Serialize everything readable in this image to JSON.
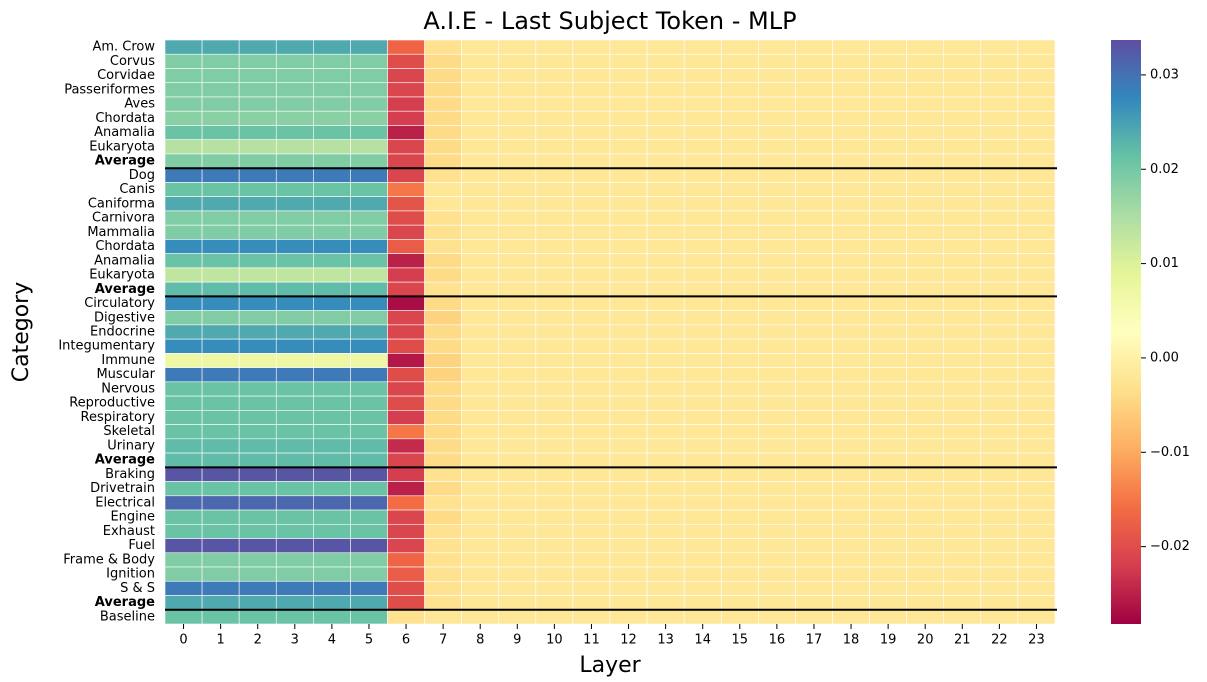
{
  "chart_data": {
    "type": "heatmap",
    "title": "A.I.E - Last Subject Token - MLP",
    "x_label": "Layer",
    "y_label": "Category",
    "x_categories": [
      0,
      1,
      2,
      3,
      4,
      5,
      6,
      7,
      8,
      9,
      10,
      11,
      12,
      13,
      14,
      15,
      16,
      17,
      18,
      19,
      20,
      21,
      22,
      23
    ],
    "y_categories": [
      "Am. Crow",
      "Corvus",
      "Corvidae",
      "Passeriformes",
      "Aves",
      "Chordata",
      "Anamalia",
      "Eukaryota",
      "Average",
      "Dog",
      "Canis",
      "Caniforma",
      "Carnivora",
      "Mammalia",
      "Chordata",
      "Anamalia",
      "Eukaryota",
      "Average",
      "Circulatory",
      "Digestive",
      "Endocrine",
      "Integumentary",
      "Immune",
      "Muscular",
      "Nervous",
      "Reproductive",
      "Respiratory",
      "Skeletal",
      "Urinary",
      "Average",
      "Braking",
      "Drivetrain",
      "Electrical",
      "Engine",
      "Exhaust",
      "Fuel",
      "Frame & Body",
      "Ignition",
      "S & S",
      "Average",
      "Baseline"
    ],
    "values": [
      [
        0.024,
        0.024,
        0.024,
        0.024,
        0.024,
        0.024,
        -0.017,
        -0.003,
        -0.002,
        -0.002,
        -0.002,
        -0.002,
        -0.002,
        -0.002,
        -0.002,
        -0.002,
        -0.002,
        -0.002,
        -0.002,
        -0.002,
        -0.002,
        -0.002,
        -0.002,
        -0.002
      ],
      [
        0.019,
        0.019,
        0.019,
        0.019,
        0.019,
        0.019,
        -0.02,
        -0.004,
        -0.002,
        -0.002,
        -0.002,
        -0.002,
        -0.002,
        -0.002,
        -0.002,
        -0.002,
        -0.002,
        -0.002,
        -0.002,
        -0.002,
        -0.002,
        -0.002,
        -0.002,
        -0.002
      ],
      [
        0.019,
        0.019,
        0.019,
        0.019,
        0.019,
        0.019,
        -0.021,
        -0.004,
        -0.002,
        -0.002,
        -0.002,
        -0.002,
        -0.002,
        -0.002,
        -0.002,
        -0.002,
        -0.002,
        -0.002,
        -0.002,
        -0.002,
        -0.002,
        -0.002,
        -0.002,
        -0.002
      ],
      [
        0.019,
        0.019,
        0.019,
        0.019,
        0.019,
        0.019,
        -0.021,
        -0.004,
        -0.002,
        -0.002,
        -0.002,
        -0.002,
        -0.002,
        -0.002,
        -0.002,
        -0.002,
        -0.002,
        -0.002,
        -0.002,
        -0.002,
        -0.002,
        -0.002,
        -0.002,
        -0.002
      ],
      [
        0.019,
        0.019,
        0.019,
        0.019,
        0.019,
        0.019,
        -0.022,
        -0.004,
        -0.002,
        -0.002,
        -0.002,
        -0.002,
        -0.002,
        -0.002,
        -0.002,
        -0.002,
        -0.002,
        -0.002,
        -0.002,
        -0.002,
        -0.002,
        -0.002,
        -0.002,
        -0.002
      ],
      [
        0.018,
        0.018,
        0.018,
        0.018,
        0.018,
        0.018,
        -0.022,
        -0.004,
        -0.002,
        -0.002,
        -0.002,
        -0.002,
        -0.002,
        -0.002,
        -0.002,
        -0.002,
        -0.002,
        -0.002,
        -0.002,
        -0.002,
        -0.002,
        -0.002,
        -0.002,
        -0.002
      ],
      [
        0.021,
        0.021,
        0.021,
        0.021,
        0.021,
        0.021,
        -0.025,
        -0.004,
        -0.002,
        -0.002,
        -0.002,
        -0.002,
        -0.002,
        -0.002,
        -0.002,
        -0.002,
        -0.002,
        -0.002,
        -0.002,
        -0.002,
        -0.002,
        -0.002,
        -0.002,
        -0.002
      ],
      [
        0.014,
        0.014,
        0.014,
        0.014,
        0.014,
        0.014,
        -0.021,
        -0.004,
        -0.002,
        -0.002,
        -0.002,
        -0.002,
        -0.002,
        -0.002,
        -0.002,
        -0.002,
        -0.002,
        -0.002,
        -0.002,
        -0.002,
        -0.002,
        -0.002,
        -0.002,
        -0.002
      ],
      [
        0.019,
        0.019,
        0.019,
        0.019,
        0.019,
        0.019,
        -0.021,
        -0.004,
        -0.002,
        -0.002,
        -0.002,
        -0.002,
        -0.002,
        -0.002,
        -0.002,
        -0.002,
        -0.002,
        -0.002,
        -0.002,
        -0.002,
        -0.002,
        -0.002,
        -0.002,
        -0.002
      ],
      [
        0.029,
        0.029,
        0.029,
        0.029,
        0.029,
        0.029,
        -0.021,
        -0.003,
        -0.002,
        -0.002,
        -0.002,
        -0.002,
        -0.002,
        -0.002,
        -0.002,
        -0.002,
        -0.002,
        -0.002,
        -0.002,
        -0.002,
        -0.002,
        -0.002,
        -0.002,
        -0.002
      ],
      [
        0.021,
        0.021,
        0.021,
        0.021,
        0.021,
        0.021,
        -0.015,
        -0.002,
        -0.002,
        -0.002,
        -0.002,
        -0.002,
        -0.002,
        -0.002,
        -0.002,
        -0.002,
        -0.002,
        -0.002,
        -0.002,
        -0.002,
        -0.002,
        -0.002,
        -0.002,
        -0.002
      ],
      [
        0.024,
        0.024,
        0.024,
        0.024,
        0.024,
        0.024,
        -0.019,
        -0.002,
        -0.002,
        -0.002,
        -0.002,
        -0.002,
        -0.002,
        -0.002,
        -0.002,
        -0.002,
        -0.002,
        -0.002,
        -0.002,
        -0.002,
        -0.002,
        -0.002,
        -0.002,
        -0.002
      ],
      [
        0.019,
        0.019,
        0.019,
        0.019,
        0.019,
        0.019,
        -0.02,
        -0.003,
        -0.002,
        -0.002,
        -0.002,
        -0.002,
        -0.002,
        -0.002,
        -0.002,
        -0.002,
        -0.002,
        -0.002,
        -0.002,
        -0.002,
        -0.002,
        -0.002,
        -0.002,
        -0.002
      ],
      [
        0.019,
        0.019,
        0.019,
        0.019,
        0.019,
        0.019,
        -0.021,
        -0.003,
        -0.002,
        -0.002,
        -0.002,
        -0.002,
        -0.002,
        -0.002,
        -0.002,
        -0.002,
        -0.002,
        -0.002,
        -0.002,
        -0.002,
        -0.002,
        -0.002,
        -0.002,
        -0.002
      ],
      [
        0.027,
        0.027,
        0.027,
        0.027,
        0.027,
        0.027,
        -0.018,
        -0.003,
        -0.002,
        -0.002,
        -0.002,
        -0.002,
        -0.002,
        -0.002,
        -0.002,
        -0.002,
        -0.002,
        -0.002,
        -0.002,
        -0.002,
        -0.002,
        -0.002,
        -0.002,
        -0.002
      ],
      [
        0.021,
        0.021,
        0.021,
        0.021,
        0.021,
        0.021,
        -0.025,
        -0.004,
        -0.002,
        -0.002,
        -0.002,
        -0.002,
        -0.002,
        -0.002,
        -0.002,
        -0.002,
        -0.002,
        -0.002,
        -0.002,
        -0.002,
        -0.002,
        -0.002,
        -0.002,
        -0.002
      ],
      [
        0.013,
        0.013,
        0.013,
        0.013,
        0.013,
        0.013,
        -0.022,
        -0.004,
        -0.002,
        -0.002,
        -0.002,
        -0.002,
        -0.002,
        -0.002,
        -0.002,
        -0.002,
        -0.002,
        -0.002,
        -0.002,
        -0.002,
        -0.002,
        -0.002,
        -0.002,
        -0.002
      ],
      [
        0.022,
        0.022,
        0.022,
        0.022,
        0.022,
        0.022,
        -0.021,
        -0.003,
        -0.002,
        -0.002,
        -0.002,
        -0.002,
        -0.002,
        -0.002,
        -0.002,
        -0.002,
        -0.002,
        -0.002,
        -0.002,
        -0.002,
        -0.002,
        -0.002,
        -0.002,
        -0.002
      ],
      [
        0.027,
        0.027,
        0.027,
        0.027,
        0.027,
        0.027,
        -0.027,
        -0.004,
        -0.002,
        -0.002,
        -0.002,
        -0.002,
        -0.002,
        -0.002,
        -0.002,
        -0.002,
        -0.002,
        -0.002,
        -0.002,
        -0.002,
        -0.002,
        -0.002,
        -0.002,
        -0.002
      ],
      [
        0.019,
        0.019,
        0.019,
        0.019,
        0.019,
        0.019,
        -0.021,
        -0.005,
        -0.002,
        -0.002,
        -0.002,
        -0.002,
        -0.002,
        -0.002,
        -0.002,
        -0.002,
        -0.002,
        -0.002,
        -0.002,
        -0.002,
        -0.002,
        -0.002,
        -0.002,
        -0.002
      ],
      [
        0.024,
        0.024,
        0.024,
        0.024,
        0.024,
        0.024,
        -0.021,
        -0.004,
        -0.002,
        -0.002,
        -0.002,
        -0.002,
        -0.002,
        -0.002,
        -0.002,
        -0.002,
        -0.002,
        -0.002,
        -0.002,
        -0.002,
        -0.002,
        -0.002,
        -0.002,
        -0.002
      ],
      [
        0.027,
        0.027,
        0.027,
        0.027,
        0.027,
        0.027,
        -0.02,
        -0.004,
        -0.002,
        -0.002,
        -0.002,
        -0.002,
        -0.002,
        -0.002,
        -0.002,
        -0.002,
        -0.002,
        -0.002,
        -0.002,
        -0.002,
        -0.002,
        -0.002,
        -0.002,
        -0.002
      ],
      [
        0.007,
        0.007,
        0.007,
        0.007,
        0.007,
        0.007,
        -0.026,
        -0.005,
        -0.002,
        -0.002,
        -0.002,
        -0.002,
        -0.002,
        -0.002,
        -0.002,
        -0.002,
        -0.002,
        -0.002,
        -0.002,
        -0.002,
        -0.002,
        -0.002,
        -0.002,
        -0.002
      ],
      [
        0.029,
        0.029,
        0.029,
        0.029,
        0.029,
        0.029,
        -0.02,
        -0.005,
        -0.002,
        -0.002,
        -0.002,
        -0.002,
        -0.002,
        -0.002,
        -0.002,
        -0.002,
        -0.002,
        -0.002,
        -0.002,
        -0.002,
        -0.002,
        -0.002,
        -0.002,
        -0.002
      ],
      [
        0.021,
        0.021,
        0.021,
        0.021,
        0.021,
        0.021,
        -0.021,
        -0.004,
        -0.002,
        -0.002,
        -0.002,
        -0.002,
        -0.002,
        -0.002,
        -0.002,
        -0.002,
        -0.002,
        -0.002,
        -0.002,
        -0.002,
        -0.002,
        -0.002,
        -0.002,
        -0.002
      ],
      [
        0.021,
        0.021,
        0.021,
        0.021,
        0.021,
        0.021,
        -0.02,
        -0.004,
        -0.002,
        -0.002,
        -0.002,
        -0.002,
        -0.002,
        -0.002,
        -0.002,
        -0.002,
        -0.002,
        -0.002,
        -0.002,
        -0.002,
        -0.002,
        -0.002,
        -0.002,
        -0.002
      ],
      [
        0.021,
        0.021,
        0.021,
        0.021,
        0.021,
        0.021,
        -0.022,
        -0.004,
        -0.002,
        -0.002,
        -0.002,
        -0.002,
        -0.002,
        -0.002,
        -0.002,
        -0.002,
        -0.002,
        -0.002,
        -0.002,
        -0.002,
        -0.002,
        -0.002,
        -0.002,
        -0.002
      ],
      [
        0.021,
        0.021,
        0.021,
        0.021,
        0.021,
        0.021,
        -0.015,
        -0.004,
        -0.002,
        -0.002,
        -0.002,
        -0.002,
        -0.002,
        -0.002,
        -0.002,
        -0.002,
        -0.002,
        -0.002,
        -0.002,
        -0.002,
        -0.002,
        -0.002,
        -0.002,
        -0.002
      ],
      [
        0.022,
        0.022,
        0.022,
        0.022,
        0.022,
        0.022,
        -0.024,
        -0.004,
        -0.002,
        -0.002,
        -0.002,
        -0.002,
        -0.002,
        -0.002,
        -0.002,
        -0.002,
        -0.002,
        -0.002,
        -0.002,
        -0.002,
        -0.002,
        -0.002,
        -0.002,
        -0.002
      ],
      [
        0.022,
        0.022,
        0.022,
        0.022,
        0.022,
        0.022,
        -0.021,
        -0.004,
        -0.002,
        -0.002,
        -0.002,
        -0.002,
        -0.002,
        -0.002,
        -0.002,
        -0.002,
        -0.002,
        -0.002,
        -0.002,
        -0.002,
        -0.002,
        -0.002,
        -0.002,
        -0.002
      ],
      [
        0.033,
        0.033,
        0.033,
        0.033,
        0.033,
        0.033,
        -0.022,
        -0.003,
        -0.002,
        -0.002,
        -0.002,
        -0.002,
        -0.002,
        -0.002,
        -0.002,
        -0.002,
        -0.002,
        -0.002,
        -0.002,
        -0.002,
        -0.002,
        -0.002,
        -0.002,
        -0.002
      ],
      [
        0.021,
        0.021,
        0.021,
        0.021,
        0.021,
        0.021,
        -0.025,
        -0.004,
        -0.002,
        -0.002,
        -0.002,
        -0.002,
        -0.002,
        -0.002,
        -0.002,
        -0.002,
        -0.002,
        -0.002,
        -0.002,
        -0.002,
        -0.002,
        -0.002,
        -0.002,
        -0.002
      ],
      [
        0.031,
        0.031,
        0.031,
        0.031,
        0.031,
        0.031,
        -0.016,
        -0.003,
        -0.002,
        -0.002,
        -0.002,
        -0.002,
        -0.002,
        -0.002,
        -0.002,
        -0.002,
        -0.002,
        -0.002,
        -0.002,
        -0.002,
        -0.002,
        -0.002,
        -0.002,
        -0.002
      ],
      [
        0.021,
        0.021,
        0.021,
        0.021,
        0.021,
        0.021,
        -0.021,
        -0.004,
        -0.002,
        -0.002,
        -0.002,
        -0.002,
        -0.002,
        -0.002,
        -0.002,
        -0.002,
        -0.002,
        -0.002,
        -0.002,
        -0.002,
        -0.002,
        -0.002,
        -0.002,
        -0.002
      ],
      [
        0.021,
        0.021,
        0.021,
        0.021,
        0.021,
        0.021,
        -0.021,
        -0.003,
        -0.002,
        -0.002,
        -0.002,
        -0.002,
        -0.002,
        -0.002,
        -0.002,
        -0.002,
        -0.002,
        -0.002,
        -0.002,
        -0.002,
        -0.002,
        -0.002,
        -0.002,
        -0.002
      ],
      [
        0.033,
        0.033,
        0.033,
        0.033,
        0.033,
        0.033,
        -0.021,
        -0.003,
        -0.002,
        -0.002,
        -0.002,
        -0.002,
        -0.002,
        -0.002,
        -0.002,
        -0.002,
        -0.002,
        -0.002,
        -0.002,
        -0.002,
        -0.002,
        -0.002,
        -0.002,
        -0.002
      ],
      [
        0.019,
        0.019,
        0.019,
        0.019,
        0.019,
        0.019,
        -0.017,
        -0.003,
        -0.002,
        -0.002,
        -0.002,
        -0.002,
        -0.002,
        -0.002,
        -0.002,
        -0.002,
        -0.002,
        -0.002,
        -0.002,
        -0.002,
        -0.002,
        -0.002,
        -0.002,
        -0.002
      ],
      [
        0.019,
        0.019,
        0.019,
        0.019,
        0.019,
        0.019,
        -0.018,
        -0.003,
        -0.002,
        -0.002,
        -0.002,
        -0.002,
        -0.002,
        -0.002,
        -0.002,
        -0.002,
        -0.002,
        -0.002,
        -0.002,
        -0.002,
        -0.002,
        -0.002,
        -0.002,
        -0.002
      ],
      [
        0.029,
        0.029,
        0.029,
        0.029,
        0.029,
        0.029,
        -0.02,
        -0.003,
        -0.002,
        -0.002,
        -0.002,
        -0.002,
        -0.002,
        -0.002,
        -0.002,
        -0.002,
        -0.002,
        -0.002,
        -0.002,
        -0.002,
        -0.002,
        -0.002,
        -0.002,
        -0.002
      ],
      [
        0.024,
        0.024,
        0.024,
        0.024,
        0.024,
        0.024,
        -0.02,
        -0.003,
        -0.002,
        -0.002,
        -0.002,
        -0.002,
        -0.002,
        -0.002,
        -0.002,
        -0.002,
        -0.002,
        -0.002,
        -0.002,
        -0.002,
        -0.002,
        -0.002,
        -0.002,
        -0.002
      ],
      [
        0.021,
        0.021,
        0.021,
        0.021,
        0.021,
        0.021,
        -0.003,
        -0.002,
        -0.002,
        -0.002,
        -0.002,
        -0.002,
        -0.002,
        -0.002,
        -0.002,
        -0.002,
        -0.002,
        -0.002,
        -0.002,
        -0.002,
        -0.002,
        -0.002,
        -0.002,
        -0.002
      ]
    ],
    "vlim": [
      -0.0282,
      0.0337
    ],
    "cticks": [
      {
        "value": -0.02,
        "label": "−0.02"
      },
      {
        "value": -0.01,
        "label": "−0.01"
      },
      {
        "value": 0,
        "label": "0.00"
      },
      {
        "value": 0.01,
        "label": "0.01"
      },
      {
        "value": 0.02,
        "label": "0.02"
      },
      {
        "value": 0.03,
        "label": "0.03"
      }
    ],
    "colors": [
      "#9e0142",
      "#d53e4f",
      "#f46d43",
      "#fdae61",
      "#fee08b",
      "#ffffbf",
      "#e6f598",
      "#abdda4",
      "#66c2a5",
      "#3288bd",
      "#5e4fa2"
    ]
  }
}
